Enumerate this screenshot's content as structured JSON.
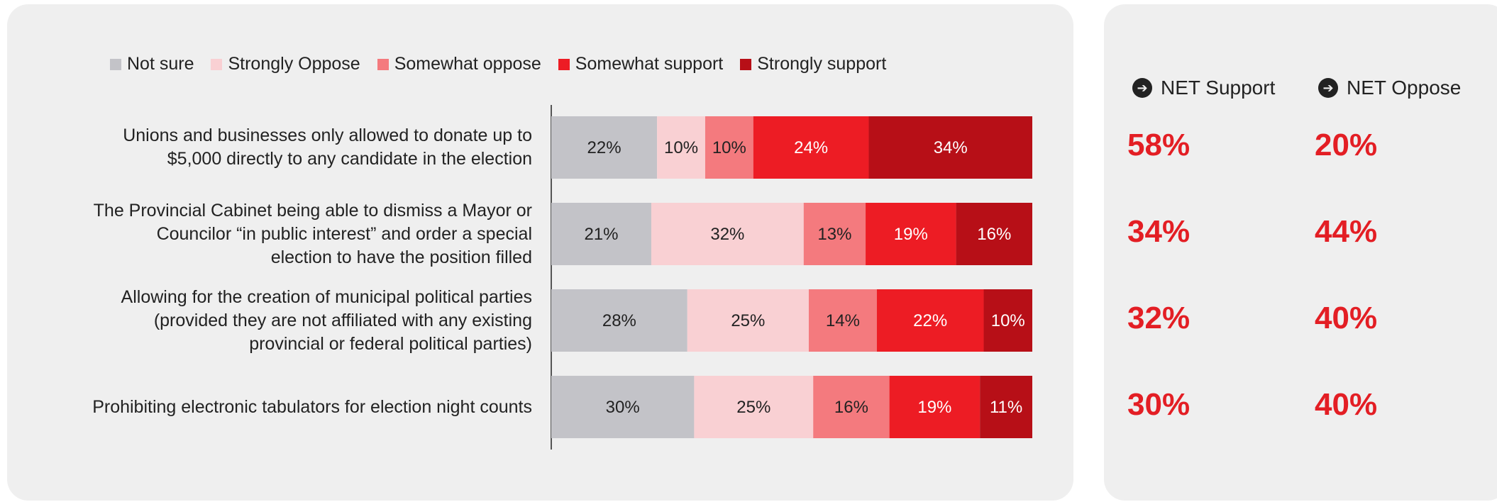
{
  "colors": {
    "not_sure": "#c3c3c8",
    "strongly_oppose": "#f9d0d3",
    "somewhat_oppose": "#f47a7e",
    "somewhat_support": "#ed1c24",
    "strongly_support": "#b70f17",
    "net_text": "#e31e24"
  },
  "legend": [
    {
      "label": "Not sure",
      "color_key": "not_sure"
    },
    {
      "label": "Strongly Oppose",
      "color_key": "strongly_oppose"
    },
    {
      "label": "Somewhat oppose",
      "color_key": "somewhat_oppose"
    },
    {
      "label": "Somewhat support",
      "color_key": "somewhat_support"
    },
    {
      "label": "Strongly support",
      "color_key": "strongly_support"
    }
  ],
  "net": {
    "support_label": "NET Support",
    "oppose_label": "NET Oppose",
    "arrow_icon": "arrow-right-circle-icon"
  },
  "chart_data": {
    "type": "bar",
    "stacked": true,
    "orientation": "horizontal",
    "categories": [
      "Unions and businesses only allowed to donate up to $5,000 directly to any candidate in the election",
      "The Provincial Cabinet being able to dismiss a Mayor or Councilor “in public interest” and order a special election to have the position filled",
      "Allowing for the creation of municipal political parties (provided they are not affiliated with any existing provincial or federal political parties)",
      "Prohibiting electronic tabulators for election night counts"
    ],
    "category_lines": [
      [
        "Unions and businesses only allowed to donate up to",
        "$5,000 directly to any candidate in the election"
      ],
      [
        "The Provincial Cabinet being able to dismiss a Mayor or",
        "Councilor “in public interest” and order a special",
        "election to have the position filled"
      ],
      [
        "Allowing for the creation of municipal political parties",
        "(provided they are not affiliated with any existing",
        "provincial or federal political parties)"
      ],
      [
        "Prohibiting electronic tabulators for election night counts"
      ]
    ],
    "series": [
      {
        "name": "Not sure",
        "color_key": "not_sure",
        "values": [
          22,
          21,
          28,
          30
        ]
      },
      {
        "name": "Strongly Oppose",
        "color_key": "strongly_oppose",
        "values": [
          10,
          32,
          25,
          25
        ]
      },
      {
        "name": "Somewhat oppose",
        "color_key": "somewhat_oppose",
        "values": [
          10,
          13,
          14,
          16
        ]
      },
      {
        "name": "Somewhat support",
        "color_key": "somewhat_support",
        "values": [
          24,
          19,
          22,
          19
        ]
      },
      {
        "name": "Strongly support",
        "color_key": "strongly_support",
        "values": [
          34,
          16,
          10,
          11
        ]
      }
    ],
    "value_suffix": "%",
    "net_support": [
      "58%",
      "34%",
      "32%",
      "30%"
    ],
    "net_oppose": [
      "20%",
      "44%",
      "40%",
      "40%"
    ],
    "legend_position": "top",
    "grid": false
  }
}
